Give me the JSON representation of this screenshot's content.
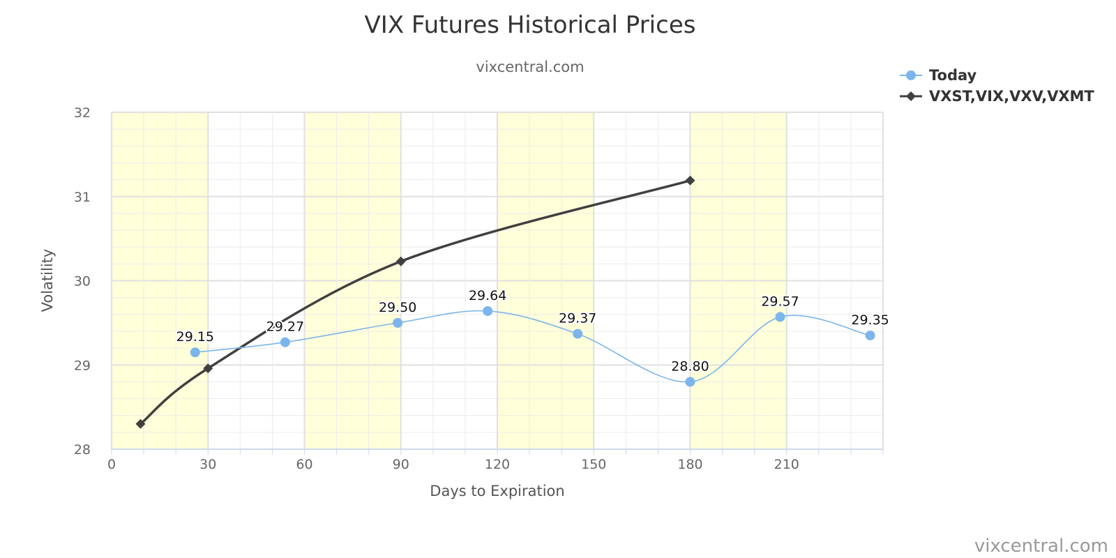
{
  "chart_data": {
    "type": "line",
    "title": "VIX Futures Historical Prices",
    "subtitle": "vixcentral.com",
    "xlabel": "Days to Expiration",
    "ylabel": "Volatility",
    "xlim": [
      0,
      240
    ],
    "ylim": [
      28,
      32
    ],
    "xticks": [
      0,
      30,
      60,
      90,
      120,
      150,
      180,
      210
    ],
    "yticks": [
      28,
      29,
      30,
      31,
      32
    ],
    "bands": [
      [
        0,
        30
      ],
      [
        60,
        90
      ],
      [
        120,
        150
      ],
      [
        180,
        210
      ]
    ],
    "band_color": "#FFFFD9",
    "grid": true,
    "legend_position": "top-right",
    "series": [
      {
        "name": "Today",
        "color": "#7CB5EC",
        "marker": "circle",
        "data_labels": true,
        "x": [
          26,
          54,
          89,
          117,
          145,
          180,
          208,
          236
        ],
        "values": [
          29.15,
          29.27,
          29.5,
          29.64,
          29.37,
          28.8,
          29.57,
          29.35
        ],
        "labels": [
          "29.15",
          "29.27",
          "29.50",
          "29.64",
          "29.37",
          "28.80",
          "29.57",
          "29.35"
        ]
      },
      {
        "name": "VXST,VIX,VXV,VXMT",
        "color": "#404040",
        "marker": "diamond",
        "data_labels": false,
        "x": [
          9,
          30,
          90,
          180
        ],
        "values": [
          28.3,
          28.96,
          30.23,
          31.19
        ]
      }
    ],
    "credit": "vixcentral.com"
  }
}
